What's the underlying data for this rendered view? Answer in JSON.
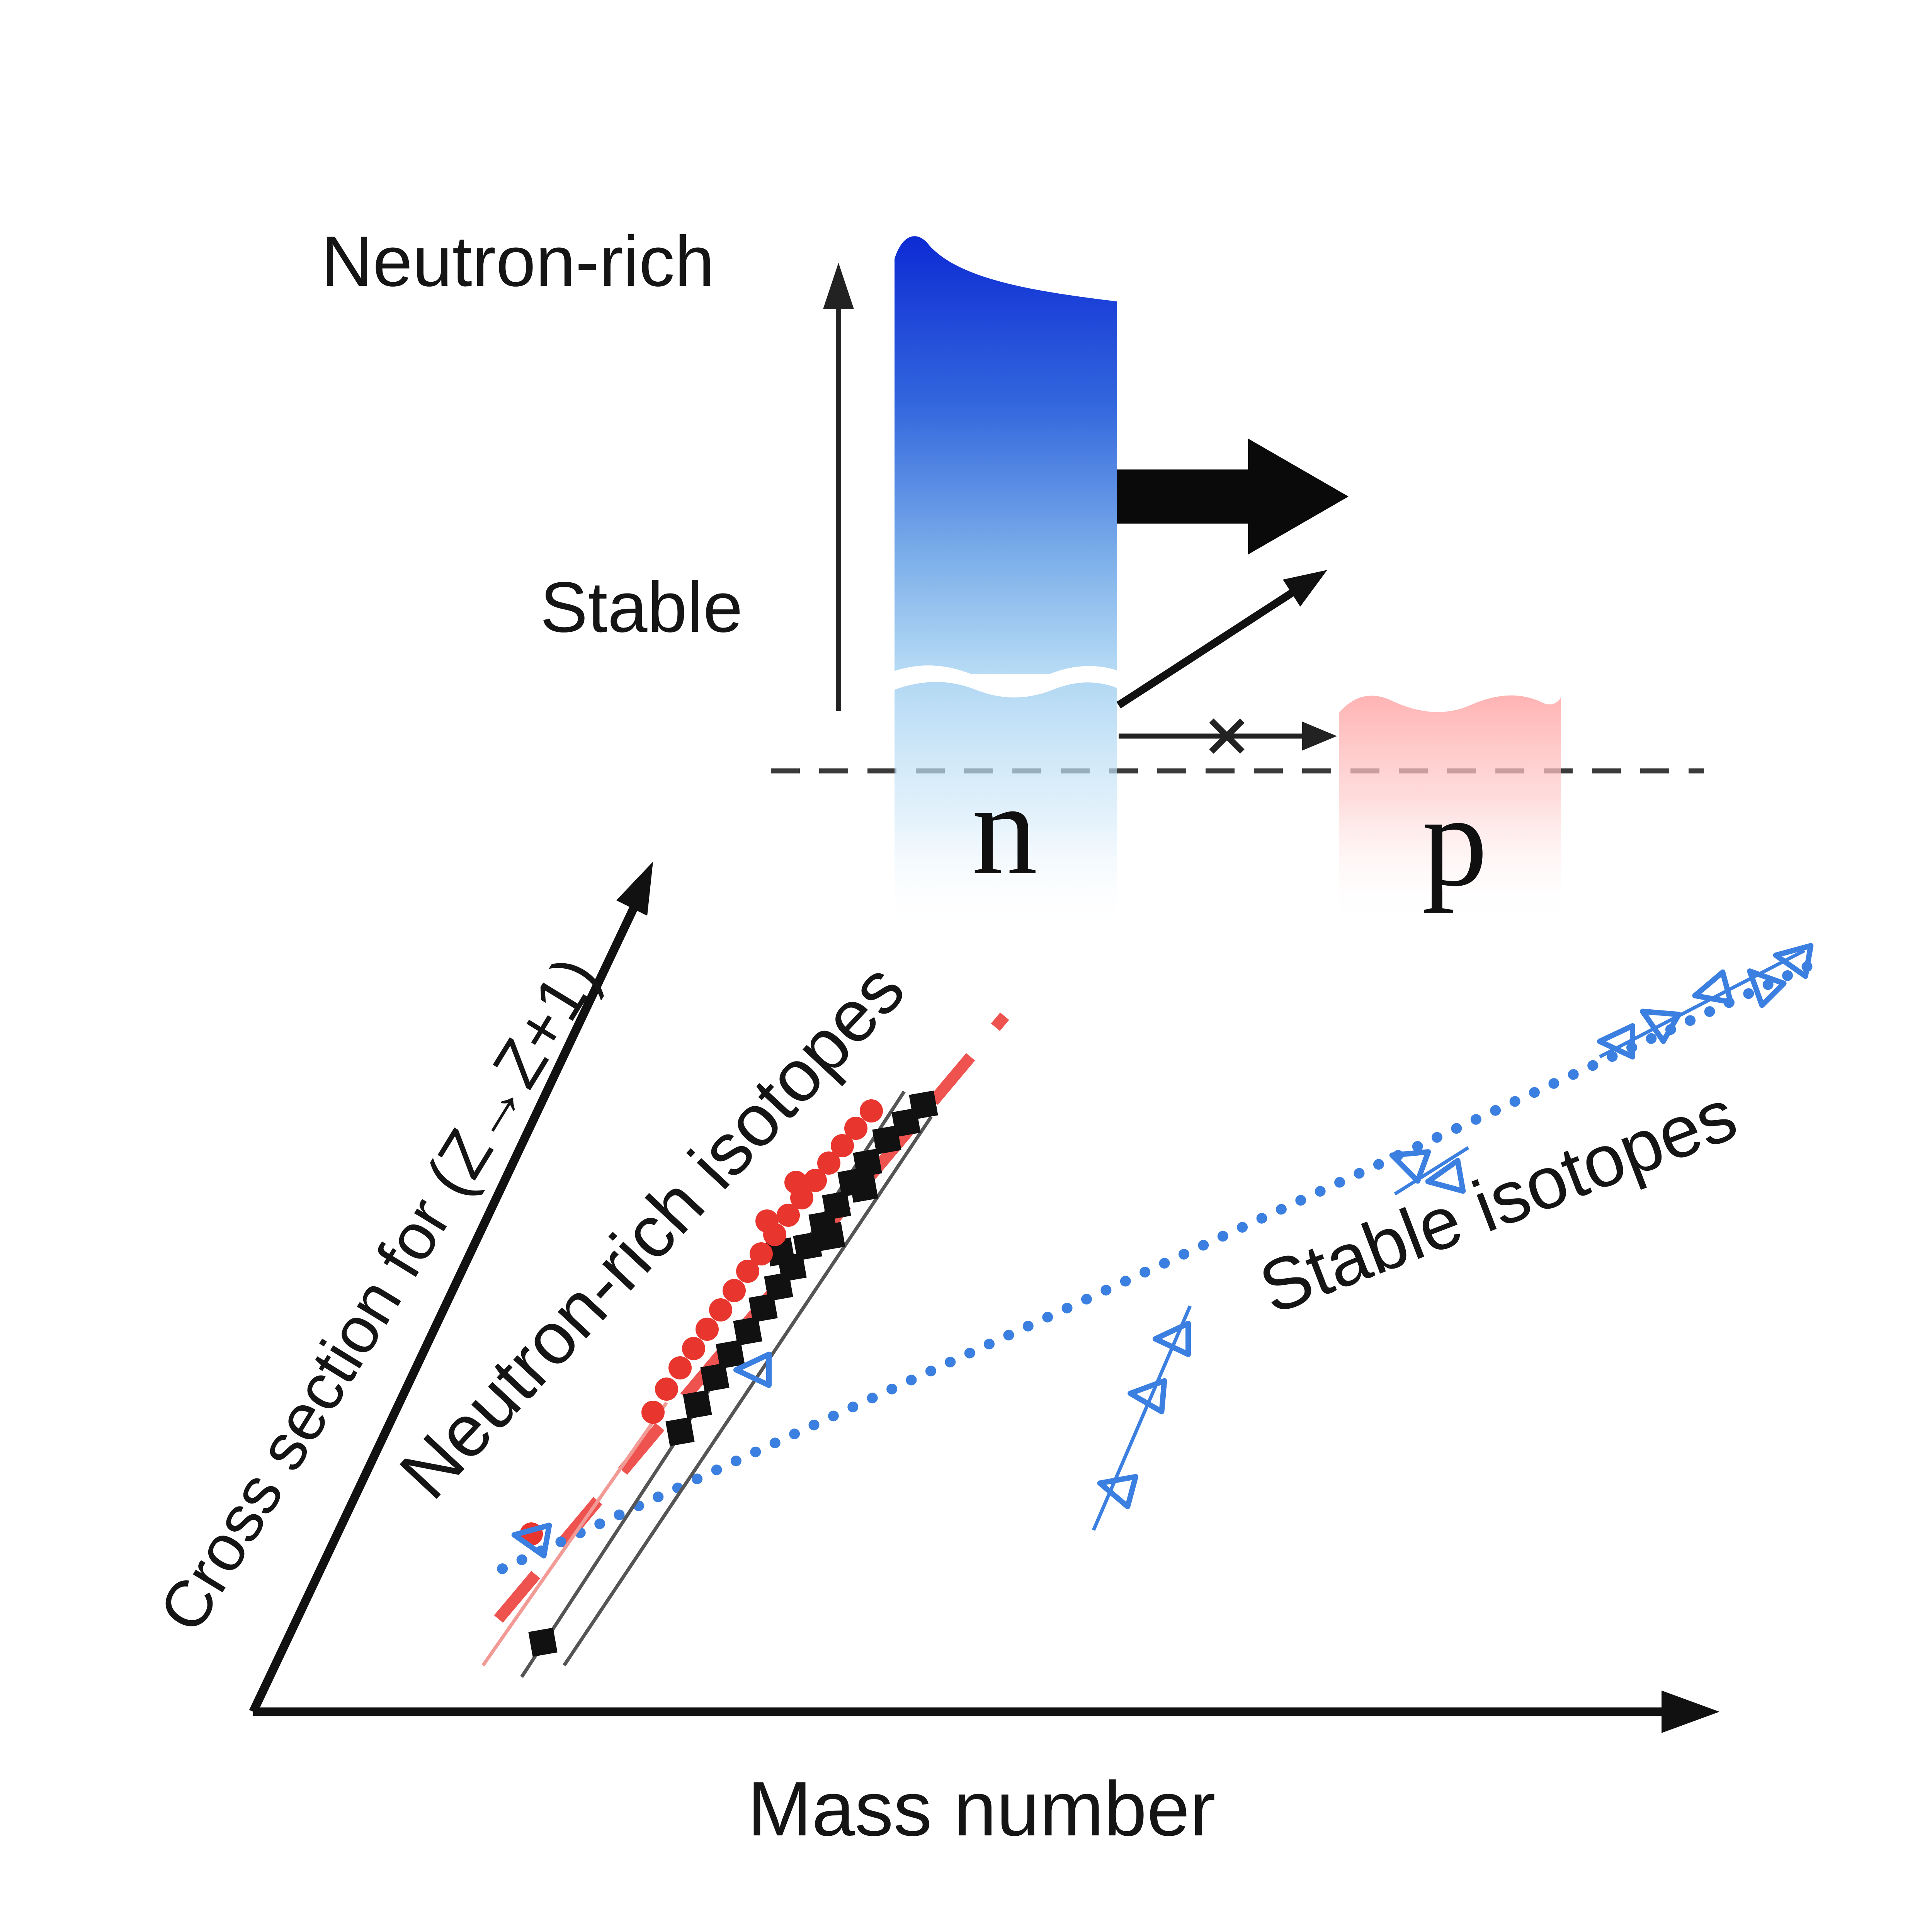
{
  "figure": {
    "background": "#ffffff",
    "description_units": "figure-relative coordinates in a 0-1000 viewBox"
  },
  "top_panel": {
    "neutron_rich_label": "Neutron-rich",
    "stable_label": "Stable",
    "neutron_symbol": "n",
    "proton_symbol": "p",
    "neutron_column_color_top": "#0d2bd4",
    "neutron_column_color_bottom": "#b8dcf5",
    "proton_column_color": "#ffb9b9",
    "fermi_line_color": "#3a3a3a"
  },
  "chart_data": {
    "type": "scatter",
    "title": "",
    "xlabel": "Mass number",
    "ylabel": "Cross section for (Z→Z+1)",
    "legend": "none",
    "grid": false,
    "annotations": [
      {
        "text": "Neutron-rich isotopes",
        "color": "#111111"
      },
      {
        "text": "Stable isotopes",
        "color": "#111111"
      }
    ],
    "trend_lines": [
      {
        "name": "neutron-rich-trend-dashed-line",
        "color": "#ef5350",
        "width": 6,
        "dash": "30 20",
        "from": [
          258,
          838
        ],
        "to": [
          520,
          526
        ]
      },
      {
        "name": "stable-trend-dotted-line",
        "color": "#3b7fe0",
        "width": 5.5,
        "dash": "0.1 11",
        "linecap": "round",
        "from": [
          260,
          812
        ],
        "to": [
          936,
          500
        ]
      }
    ],
    "guide_lines": [
      {
        "name": "isotope-chain-line-1",
        "color": "#555555",
        "width": 1.8,
        "from": [
          270,
          868
        ],
        "to": [
          468,
          565
        ]
      },
      {
        "name": "isotope-chain-line-2",
        "color": "#555555",
        "width": 1.8,
        "from": [
          292,
          862
        ],
        "to": [
          482,
          578
        ]
      },
      {
        "name": "isotope-chain-line-red",
        "color": "#f29b96",
        "width": 1.8,
        "from": [
          250,
          862
        ],
        "to": [
          345,
          726
        ]
      },
      {
        "name": "stable-chain-line-1",
        "color": "#3b7fe0",
        "width": 1.8,
        "from": [
          566,
          792
        ],
        "to": [
          616,
          676
        ]
      },
      {
        "name": "stable-chain-line-2",
        "color": "#3b7fe0",
        "width": 1.8,
        "from": [
          722,
          618
        ],
        "to": [
          760,
          594
        ]
      },
      {
        "name": "stable-chain-line-3",
        "color": "#3b7fe0",
        "width": 1.8,
        "from": [
          828,
          547
        ],
        "to": [
          934,
          492
        ]
      }
    ],
    "series": [
      {
        "name": "Neutron-rich isotopes",
        "marker": "filled-square",
        "color": "#111111",
        "size": 13,
        "points": [
          [
            281,
            850
          ],
          [
            352,
            741
          ],
          [
            361,
            727
          ],
          [
            370,
            713
          ],
          [
            378,
            701
          ],
          [
            387,
            689
          ],
          [
            395,
            677
          ],
          [
            403,
            666
          ],
          [
            404,
            648
          ],
          [
            410,
            656
          ],
          [
            418,
            645
          ],
          [
            426,
            634
          ],
          [
            430,
            640
          ],
          [
            433,
            624
          ],
          [
            441,
            612
          ],
          [
            447,
            615
          ],
          [
            449,
            602
          ],
          [
            459,
            590
          ],
          [
            469,
            581
          ],
          [
            478,
            572
          ]
        ]
      },
      {
        "name": "Neutron-rich isotopes",
        "marker": "filled-circle",
        "color": "#e8352e",
        "size": 12,
        "points": [
          [
            275,
            794
          ],
          [
            338,
            731
          ],
          [
            345,
            719
          ],
          [
            352,
            708
          ],
          [
            359,
            698
          ],
          [
            366,
            688
          ],
          [
            373,
            678
          ],
          [
            380,
            668
          ],
          [
            387,
            658
          ],
          [
            394,
            649
          ],
          [
            397,
            632
          ],
          [
            401,
            639
          ],
          [
            408,
            629
          ],
          [
            412,
            612
          ],
          [
            415,
            620
          ],
          [
            422,
            611
          ],
          [
            429,
            602
          ],
          [
            436,
            593
          ],
          [
            443,
            584
          ],
          [
            451,
            575
          ]
        ]
      },
      {
        "name": "Stable isotopes",
        "marker": "open-triangle",
        "color": "#3b7fe0",
        "size": 16,
        "points": [
          [
            275,
            796,
            10
          ],
          [
            390,
            709,
            0
          ],
          [
            578,
            770,
            15
          ],
          [
            594,
            722,
            5
          ],
          [
            607,
            693,
            0
          ],
          [
            729,
            601,
            20
          ],
          [
            748,
            610,
            -10
          ],
          [
            837,
            539,
            0
          ],
          [
            858,
            528,
            30
          ],
          [
            886,
            513,
            -15
          ],
          [
            912,
            509,
            45
          ],
          [
            928,
            496,
            10
          ]
        ]
      }
    ]
  }
}
